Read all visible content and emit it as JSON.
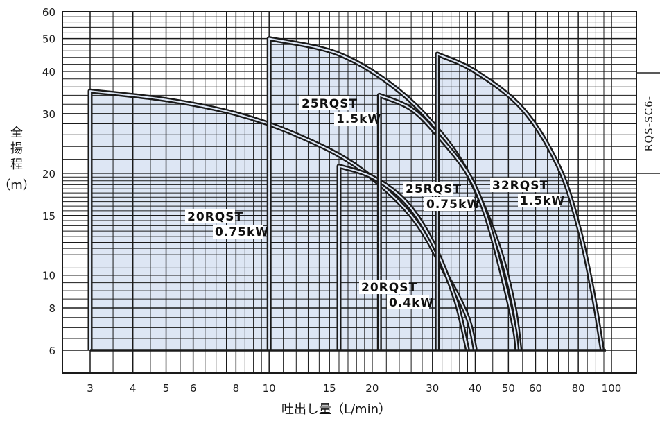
{
  "chart_data": {
    "type": "area",
    "xlabel": "吐出し量（L/min）",
    "ylabel": [
      "全",
      "揚",
      "程",
      "（m）"
    ],
    "xscale": "log",
    "yscale": "log",
    "xlim": [
      3,
      100
    ],
    "ylim": [
      6,
      60
    ],
    "x_ticks": [
      {
        "v": 3,
        "t": "3"
      },
      {
        "v": 4,
        "t": "4"
      },
      {
        "v": 5,
        "t": "5"
      },
      {
        "v": 6,
        "t": "6"
      },
      {
        "v": 8,
        "t": "8"
      },
      {
        "v": 10,
        "t": "10"
      },
      {
        "v": 15,
        "t": "15"
      },
      {
        "v": 20,
        "t": "20"
      },
      {
        "v": 30,
        "t": "30"
      },
      {
        "v": 40,
        "t": "40"
      },
      {
        "v": 50,
        "t": "50"
      },
      {
        "v": 60,
        "t": "60"
      },
      {
        "v": 80,
        "t": "80"
      },
      {
        "v": 100,
        "t": "100"
      }
    ],
    "y_ticks": [
      {
        "v": 60,
        "t": "60"
      },
      {
        "v": 50,
        "t": "50"
      },
      {
        "v": 40,
        "t": "40"
      },
      {
        "v": 30,
        "t": "30"
      },
      {
        "v": 20,
        "t": "20"
      },
      {
        "v": 15,
        "t": "15"
      },
      {
        "v": 10,
        "t": "10"
      },
      {
        "v": 8,
        "t": "8"
      },
      {
        "v": 6,
        "t": "6"
      }
    ],
    "grid": true,
    "fill_color": "#dde6f4",
    "line_color": "#1a1a1a",
    "series": [
      {
        "label": [
          "20RQST",
          "0.75kW"
        ],
        "points": [
          [
            3,
            6
          ],
          [
            3,
            35
          ],
          [
            5,
            33
          ],
          [
            8,
            30
          ],
          [
            12,
            26
          ],
          [
            18,
            21
          ],
          [
            26,
            15
          ],
          [
            33,
            10
          ],
          [
            38,
            7.5
          ],
          [
            40,
            6
          ]
        ]
      },
      {
        "label": [
          "20RQST",
          "0.4kW"
        ],
        "points": [
          [
            16,
            6
          ],
          [
            16,
            21
          ],
          [
            20,
            19.5
          ],
          [
            25,
            16.5
          ],
          [
            30,
            12.5
          ],
          [
            35,
            8.5
          ],
          [
            38,
            6
          ]
        ]
      },
      {
        "label": [
          "25RQST",
          "1.5kW"
        ],
        "points": [
          [
            10,
            6
          ],
          [
            10,
            50
          ],
          [
            16,
            45
          ],
          [
            24,
            35
          ],
          [
            33,
            25
          ],
          [
            40,
            18
          ],
          [
            47,
            12
          ],
          [
            52,
            8
          ],
          [
            54,
            6
          ]
        ]
      },
      {
        "label": [
          "25RQST",
          "0.75kW"
        ],
        "points": [
          [
            21,
            6
          ],
          [
            21,
            34
          ],
          [
            26,
            31
          ],
          [
            31,
            26
          ],
          [
            38,
            20
          ],
          [
            43,
            15
          ],
          [
            48,
            10
          ],
          [
            52,
            7
          ],
          [
            53,
            6
          ]
        ]
      },
      {
        "label": [
          "32RQST",
          "1.5kW"
        ],
        "points": [
          [
            31,
            6
          ],
          [
            31,
            45
          ],
          [
            40,
            40
          ],
          [
            55,
            31
          ],
          [
            70,
            21
          ],
          [
            80,
            14
          ],
          [
            88,
            9
          ],
          [
            94,
            6
          ]
        ]
      }
    ]
  },
  "side_ref": "RQS-SC6-"
}
